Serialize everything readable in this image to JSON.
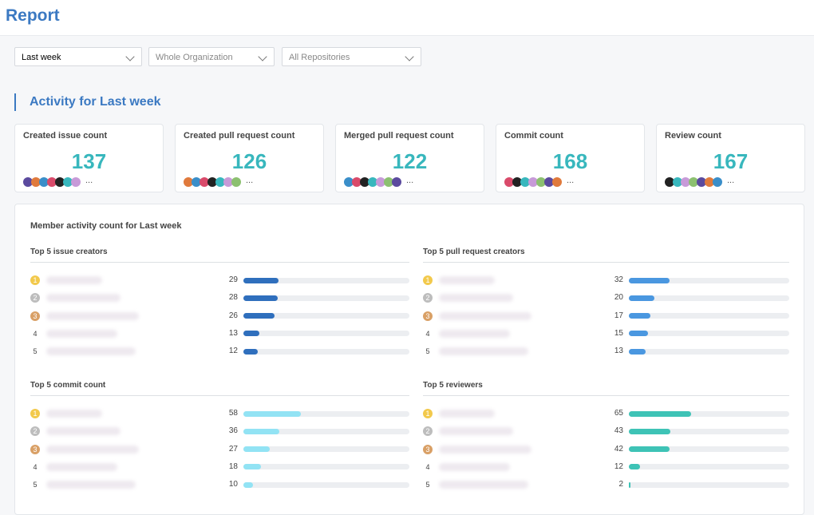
{
  "header": {
    "title": "Report"
  },
  "filters": [
    "Last week",
    "Whole Organization",
    "All Repositories"
  ],
  "activity_title": "Activity for Last week",
  "cards": [
    {
      "label": "Created issue count",
      "value": 137,
      "more": "..."
    },
    {
      "label": "Created pull request count",
      "value": 126,
      "more": "..."
    },
    {
      "label": "Merged pull request count",
      "value": 122,
      "more": "..."
    },
    {
      "label": "Commit count",
      "value": 168,
      "more": "..."
    },
    {
      "label": "Review count",
      "value": 167,
      "more": "..."
    }
  ],
  "member_activity": {
    "title": "Member activity count for Last week",
    "panels": [
      {
        "title": "Top 5 issue creators",
        "color": "#2f6fbd",
        "rows": [
          {
            "rank": 1,
            "value": 29
          },
          {
            "rank": 2,
            "value": 28
          },
          {
            "rank": 3,
            "value": 26
          },
          {
            "rank": 4,
            "value": 13
          },
          {
            "rank": 5,
            "value": 12
          }
        ]
      },
      {
        "title": "Top 5 pull request creators",
        "color": "#4a97e0",
        "rows": [
          {
            "rank": 1,
            "value": 32
          },
          {
            "rank": 2,
            "value": 20
          },
          {
            "rank": 3,
            "value": 17
          },
          {
            "rank": 4,
            "value": 15
          },
          {
            "rank": 5,
            "value": 13
          }
        ]
      },
      {
        "title": "Top 5 commit count",
        "color": "#92e3f4",
        "rows": [
          {
            "rank": 1,
            "value": 58
          },
          {
            "rank": 2,
            "value": 36
          },
          {
            "rank": 3,
            "value": 27
          },
          {
            "rank": 4,
            "value": 18
          },
          {
            "rank": 5,
            "value": 10
          }
        ]
      },
      {
        "title": "Top 5 reviewers",
        "color": "#3ec3b6",
        "rows": [
          {
            "rank": 1,
            "value": 65
          },
          {
            "rank": 2,
            "value": 43
          },
          {
            "rank": 3,
            "value": 42
          },
          {
            "rank": 4,
            "value": 12
          },
          {
            "rank": 5,
            "value": 2
          }
        ]
      }
    ]
  }
}
